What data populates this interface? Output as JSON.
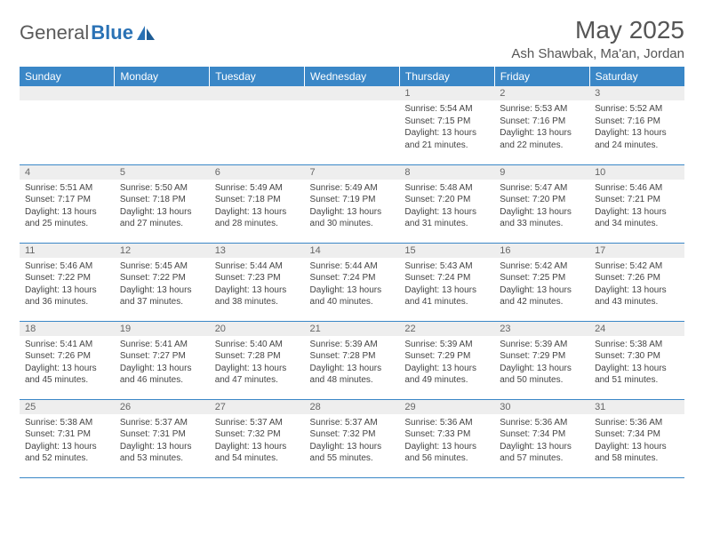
{
  "logo": {
    "text1": "General",
    "text2": "Blue"
  },
  "title": "May 2025",
  "location": "Ash Shawbak, Ma'an, Jordan",
  "style": {
    "header_bg": "#3a87c7",
    "header_fg": "#ffffff",
    "daynum_bg": "#eeeeee",
    "daynum_fg": "#666666",
    "border_color": "#3a87c7",
    "body_fg": "#444444",
    "page_bg": "#ffffff",
    "title_fg": "#555555",
    "logo_gray": "#5a5a5a",
    "logo_blue": "#2a72b5",
    "font_family": "Arial",
    "month_title_size_pt": 21,
    "location_size_pt": 11,
    "dayhead_size_pt": 9,
    "daynum_size_pt": 8,
    "body_size_pt": 7.5
  },
  "day_headers": [
    "Sunday",
    "Monday",
    "Tuesday",
    "Wednesday",
    "Thursday",
    "Friday",
    "Saturday"
  ],
  "weeks": [
    [
      {
        "n": "",
        "sunrise": "",
        "sunset": "",
        "daylight": "",
        "empty": true
      },
      {
        "n": "",
        "sunrise": "",
        "sunset": "",
        "daylight": "",
        "empty": true
      },
      {
        "n": "",
        "sunrise": "",
        "sunset": "",
        "daylight": "",
        "empty": true
      },
      {
        "n": "",
        "sunrise": "",
        "sunset": "",
        "daylight": "",
        "empty": true
      },
      {
        "n": "1",
        "sunrise": "Sunrise: 5:54 AM",
        "sunset": "Sunset: 7:15 PM",
        "daylight": "Daylight: 13 hours and 21 minutes."
      },
      {
        "n": "2",
        "sunrise": "Sunrise: 5:53 AM",
        "sunset": "Sunset: 7:16 PM",
        "daylight": "Daylight: 13 hours and 22 minutes."
      },
      {
        "n": "3",
        "sunrise": "Sunrise: 5:52 AM",
        "sunset": "Sunset: 7:16 PM",
        "daylight": "Daylight: 13 hours and 24 minutes."
      }
    ],
    [
      {
        "n": "4",
        "sunrise": "Sunrise: 5:51 AM",
        "sunset": "Sunset: 7:17 PM",
        "daylight": "Daylight: 13 hours and 25 minutes."
      },
      {
        "n": "5",
        "sunrise": "Sunrise: 5:50 AM",
        "sunset": "Sunset: 7:18 PM",
        "daylight": "Daylight: 13 hours and 27 minutes."
      },
      {
        "n": "6",
        "sunrise": "Sunrise: 5:49 AM",
        "sunset": "Sunset: 7:18 PM",
        "daylight": "Daylight: 13 hours and 28 minutes."
      },
      {
        "n": "7",
        "sunrise": "Sunrise: 5:49 AM",
        "sunset": "Sunset: 7:19 PM",
        "daylight": "Daylight: 13 hours and 30 minutes."
      },
      {
        "n": "8",
        "sunrise": "Sunrise: 5:48 AM",
        "sunset": "Sunset: 7:20 PM",
        "daylight": "Daylight: 13 hours and 31 minutes."
      },
      {
        "n": "9",
        "sunrise": "Sunrise: 5:47 AM",
        "sunset": "Sunset: 7:20 PM",
        "daylight": "Daylight: 13 hours and 33 minutes."
      },
      {
        "n": "10",
        "sunrise": "Sunrise: 5:46 AM",
        "sunset": "Sunset: 7:21 PM",
        "daylight": "Daylight: 13 hours and 34 minutes."
      }
    ],
    [
      {
        "n": "11",
        "sunrise": "Sunrise: 5:46 AM",
        "sunset": "Sunset: 7:22 PM",
        "daylight": "Daylight: 13 hours and 36 minutes."
      },
      {
        "n": "12",
        "sunrise": "Sunrise: 5:45 AM",
        "sunset": "Sunset: 7:22 PM",
        "daylight": "Daylight: 13 hours and 37 minutes."
      },
      {
        "n": "13",
        "sunrise": "Sunrise: 5:44 AM",
        "sunset": "Sunset: 7:23 PM",
        "daylight": "Daylight: 13 hours and 38 minutes."
      },
      {
        "n": "14",
        "sunrise": "Sunrise: 5:44 AM",
        "sunset": "Sunset: 7:24 PM",
        "daylight": "Daylight: 13 hours and 40 minutes."
      },
      {
        "n": "15",
        "sunrise": "Sunrise: 5:43 AM",
        "sunset": "Sunset: 7:24 PM",
        "daylight": "Daylight: 13 hours and 41 minutes."
      },
      {
        "n": "16",
        "sunrise": "Sunrise: 5:42 AM",
        "sunset": "Sunset: 7:25 PM",
        "daylight": "Daylight: 13 hours and 42 minutes."
      },
      {
        "n": "17",
        "sunrise": "Sunrise: 5:42 AM",
        "sunset": "Sunset: 7:26 PM",
        "daylight": "Daylight: 13 hours and 43 minutes."
      }
    ],
    [
      {
        "n": "18",
        "sunrise": "Sunrise: 5:41 AM",
        "sunset": "Sunset: 7:26 PM",
        "daylight": "Daylight: 13 hours and 45 minutes."
      },
      {
        "n": "19",
        "sunrise": "Sunrise: 5:41 AM",
        "sunset": "Sunset: 7:27 PM",
        "daylight": "Daylight: 13 hours and 46 minutes."
      },
      {
        "n": "20",
        "sunrise": "Sunrise: 5:40 AM",
        "sunset": "Sunset: 7:28 PM",
        "daylight": "Daylight: 13 hours and 47 minutes."
      },
      {
        "n": "21",
        "sunrise": "Sunrise: 5:39 AM",
        "sunset": "Sunset: 7:28 PM",
        "daylight": "Daylight: 13 hours and 48 minutes."
      },
      {
        "n": "22",
        "sunrise": "Sunrise: 5:39 AM",
        "sunset": "Sunset: 7:29 PM",
        "daylight": "Daylight: 13 hours and 49 minutes."
      },
      {
        "n": "23",
        "sunrise": "Sunrise: 5:39 AM",
        "sunset": "Sunset: 7:29 PM",
        "daylight": "Daylight: 13 hours and 50 minutes."
      },
      {
        "n": "24",
        "sunrise": "Sunrise: 5:38 AM",
        "sunset": "Sunset: 7:30 PM",
        "daylight": "Daylight: 13 hours and 51 minutes."
      }
    ],
    [
      {
        "n": "25",
        "sunrise": "Sunrise: 5:38 AM",
        "sunset": "Sunset: 7:31 PM",
        "daylight": "Daylight: 13 hours and 52 minutes."
      },
      {
        "n": "26",
        "sunrise": "Sunrise: 5:37 AM",
        "sunset": "Sunset: 7:31 PM",
        "daylight": "Daylight: 13 hours and 53 minutes."
      },
      {
        "n": "27",
        "sunrise": "Sunrise: 5:37 AM",
        "sunset": "Sunset: 7:32 PM",
        "daylight": "Daylight: 13 hours and 54 minutes."
      },
      {
        "n": "28",
        "sunrise": "Sunrise: 5:37 AM",
        "sunset": "Sunset: 7:32 PM",
        "daylight": "Daylight: 13 hours and 55 minutes."
      },
      {
        "n": "29",
        "sunrise": "Sunrise: 5:36 AM",
        "sunset": "Sunset: 7:33 PM",
        "daylight": "Daylight: 13 hours and 56 minutes."
      },
      {
        "n": "30",
        "sunrise": "Sunrise: 5:36 AM",
        "sunset": "Sunset: 7:34 PM",
        "daylight": "Daylight: 13 hours and 57 minutes."
      },
      {
        "n": "31",
        "sunrise": "Sunrise: 5:36 AM",
        "sunset": "Sunset: 7:34 PM",
        "daylight": "Daylight: 13 hours and 58 minutes."
      }
    ]
  ]
}
